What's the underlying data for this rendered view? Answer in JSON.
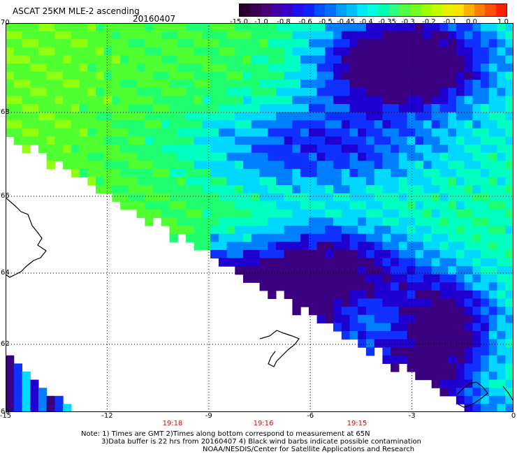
{
  "title": "ASCAT 25KM MLE-2 ascending",
  "date": "20160407",
  "colorbar": {
    "labels": [
      "-15.0",
      "-1.0",
      "-0.8",
      "-0.6",
      "-0.5",
      "-0.45",
      "-0.4",
      "-0.35",
      "-0.3",
      "-0.2",
      "-0.1",
      "0.0",
      "1.0"
    ],
    "colors": [
      "#2a0030",
      "#4a0078",
      "#3800c8",
      "#1020ff",
      "#0070ff",
      "#00c0ff",
      "#00ffe0",
      "#30ff80",
      "#70ff20",
      "#c0ff00",
      "#ffe000",
      "#ff8000",
      "#ff2000"
    ]
  },
  "axes": {
    "lat_labels": [
      "70",
      "68",
      "66",
      "64",
      "62",
      "60"
    ],
    "lon_labels": [
      "-15",
      "-12",
      "-9",
      "-6",
      "-3",
      "0"
    ],
    "lat_range": [
      60,
      70
    ],
    "lon_range": [
      -15,
      0
    ],
    "grid": true
  },
  "times": [
    "19:18",
    "19:16",
    "19:15"
  ],
  "notes": [
    "Note: 1) Times are GMT 2)Times along bottom correspond to measurement at 65N",
    "3)Data buffer is 22 hrs from 20160407 4) Black wind barbs indicate possible contamination",
    "NOAA/NESDIS/Center for Satellite Applications and Research"
  ]
}
